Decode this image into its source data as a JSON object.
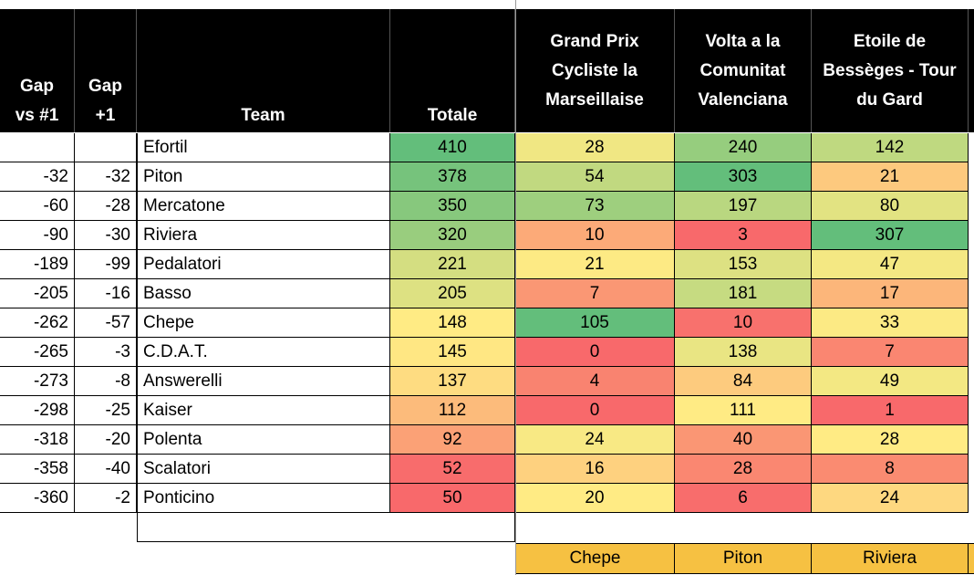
{
  "table": {
    "headers": [
      "Gap\nvs #1",
      "Gap\n+1",
      "Team",
      "Totale",
      "Grand Prix\nCycliste la\nMarseillaise",
      "Volta a la\nComunitat\nValenciana",
      "Etoile de\nBessèges - Tour\ndu Gard"
    ],
    "rows": [
      [
        null,
        null,
        "Efortil",
        410,
        28,
        240,
        142
      ],
      [
        -32,
        -32,
        "Piton",
        378,
        54,
        303,
        21
      ],
      [
        -60,
        -28,
        "Mercatone",
        350,
        73,
        197,
        80
      ],
      [
        -90,
        -30,
        "Riviera",
        320,
        10,
        3,
        307
      ],
      [
        -189,
        -99,
        "Pedalatori",
        221,
        21,
        153,
        47
      ],
      [
        -205,
        -16,
        "Basso",
        205,
        7,
        181,
        17
      ],
      [
        -262,
        -57,
        "Chepe",
        148,
        105,
        10,
        33
      ],
      [
        -265,
        -3,
        "C.D.A.T.",
        145,
        0,
        138,
        7
      ],
      [
        -273,
        -8,
        "Answerelli",
        137,
        4,
        84,
        49
      ],
      [
        -298,
        -25,
        "Kaiser",
        112,
        0,
        111,
        1
      ],
      [
        -318,
        -20,
        "Polenta",
        92,
        24,
        40,
        28
      ],
      [
        -358,
        -40,
        "Scalatori",
        52,
        16,
        28,
        8
      ],
      [
        -360,
        -2,
        "Ponticino",
        50,
        20,
        6,
        24
      ]
    ],
    "winners": [
      "Chepe",
      "Piton",
      "Riviera"
    ]
  }
}
